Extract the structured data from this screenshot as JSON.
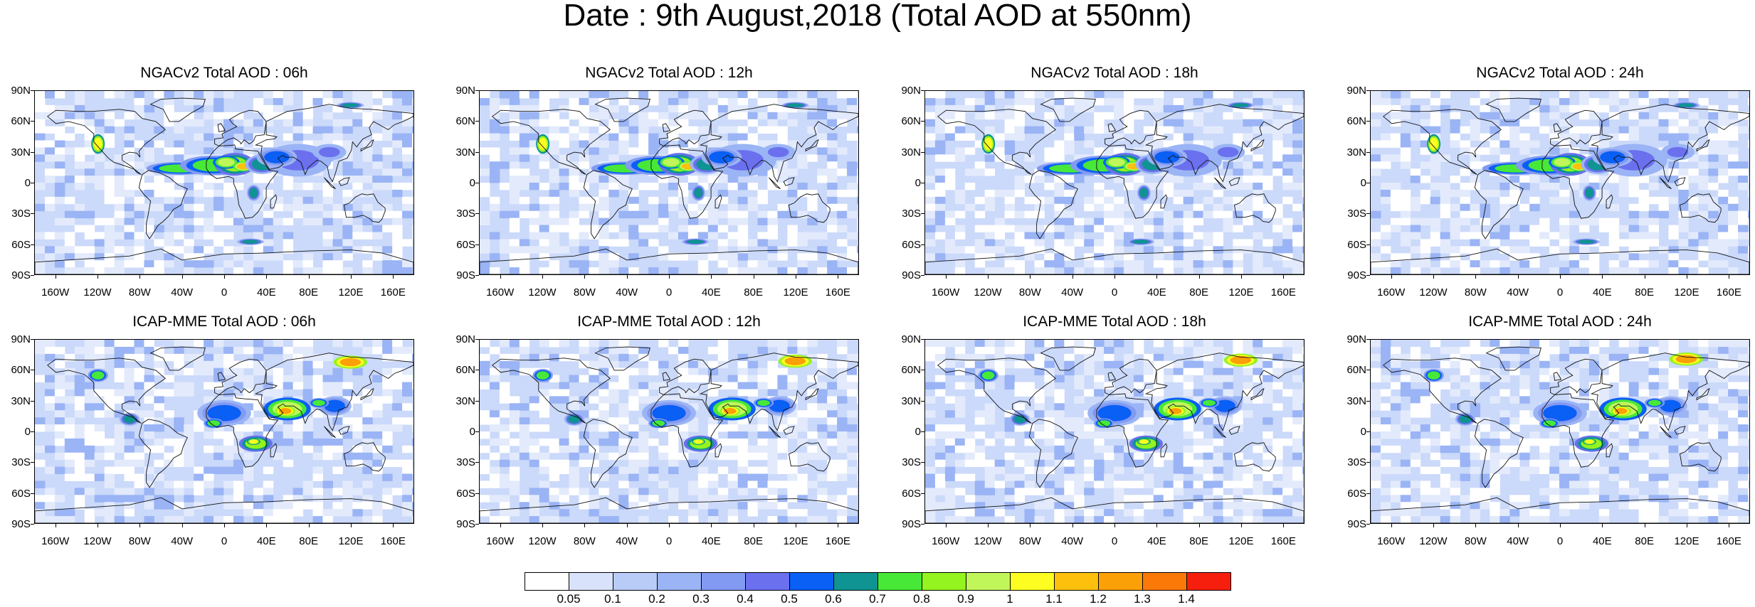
{
  "title": "Date : 9th August,2018 (Total AOD at 550nm)",
  "rows": [
    {
      "model": "NGACv2",
      "panels": [
        {
          "title": "NGACv2 Total AOD : 06h"
        },
        {
          "title": "NGACv2 Total AOD : 12h"
        },
        {
          "title": "NGACv2 Total AOD : 18h"
        },
        {
          "title": "NGACv2 Total AOD : 24h"
        }
      ]
    },
    {
      "model": "ICAP-MME",
      "panels": [
        {
          "title": "ICAP-MME Total AOD : 06h"
        },
        {
          "title": "ICAP-MME Total AOD : 12h"
        },
        {
          "title": "ICAP-MME Total AOD : 18h"
        },
        {
          "title": "ICAP-MME Total AOD : 24h"
        }
      ]
    }
  ],
  "axes": {
    "lat_labels": [
      "90N",
      "60N",
      "30N",
      "0",
      "30S",
      "60S",
      "90S"
    ],
    "lon_labels": [
      "160W",
      "120W",
      "80W",
      "40W",
      "0",
      "40E",
      "80E",
      "120E",
      "160E"
    ]
  },
  "colorbar": {
    "labels": [
      "0.05",
      "0.1",
      "0.2",
      "0.3",
      "0.4",
      "0.5",
      "0.6",
      "0.7",
      "0.8",
      "0.9",
      "1",
      "1.1",
      "1.2",
      "1.3",
      "1.4"
    ],
    "colors": [
      "#ffffff",
      "#d8e3fb",
      "#b9ccf7",
      "#9ab4f5",
      "#839af2",
      "#6a70ee",
      "#0a5ff5",
      "#0f9393",
      "#48e838",
      "#93f41f",
      "#c1f65b",
      "#fdfd21",
      "#fcc00d",
      "#fca007",
      "#fb7907",
      "#f61f0e"
    ]
  }
}
